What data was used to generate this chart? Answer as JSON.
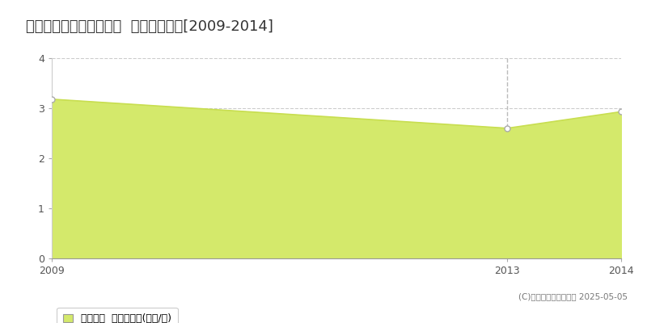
{
  "title": "上川郡鷹栖町北野西二条  土地価格推移[2009-2014]",
  "years": [
    2009,
    2013,
    2014
  ],
  "values": [
    3.18,
    2.6,
    2.93
  ],
  "area_color": "#d4e96b",
  "line_color": "#c8de50",
  "marker_color": "#ffffff",
  "marker_edge_color": "#aaaaaa",
  "bg_color": "#ffffff",
  "grid_color": "#cccccc",
  "xlim": [
    2009,
    2014
  ],
  "ylim": [
    0,
    4
  ],
  "yticks": [
    0,
    1,
    2,
    3,
    4
  ],
  "xticks": [
    2009,
    2013,
    2014
  ],
  "legend_label": "土地価格  平均坪単価(万円/坪)",
  "copyright_text": "(C)土地価格ドットコム 2025-05-05",
  "vline_x": 2013,
  "title_fontsize": 13,
  "tick_fontsize": 9,
  "legend_fontsize": 9
}
